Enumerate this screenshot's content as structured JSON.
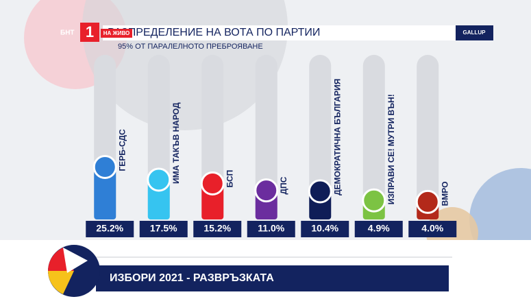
{
  "chart_data": {
    "type": "bar",
    "title": "РАЗПРЕДЕЛЕНИЕ НА ВОТА ПО ПАРТИИ",
    "subtitle": "95% ОТ ПАРАЛЕЛНОТО ПРЕБРОЯВАНЕ",
    "categories": [
      "ГЕРБ-СДС",
      "ИМА ТАКЪВ НАРОД",
      "БСП",
      "ДПС",
      "ДЕМОКРАТИЧНА БЪЛГАРИЯ",
      "ИЗПРАВИ СЕ! МУТРИ ВЪН!",
      "ВМРО"
    ],
    "values": [
      25.2,
      17.5,
      15.2,
      11.0,
      10.4,
      4.9,
      4.0
    ],
    "value_labels": [
      "25.2%",
      "17.5%",
      "15.2%",
      "11.0%",
      "10.4%",
      "4.9%",
      "4.0%"
    ],
    "colors": [
      "#2f7fd6",
      "#36c4f0",
      "#e8202a",
      "#6b2d9e",
      "#0f1d57",
      "#7cc343",
      "#b3291a"
    ]
  },
  "broadcast": {
    "channel": "БНТ",
    "number": "1",
    "live": "НА ЖИВО",
    "source": "GALLUP",
    "show": "ИЗБОРИ 2021 - РАЗВРЪЗКАТА"
  }
}
